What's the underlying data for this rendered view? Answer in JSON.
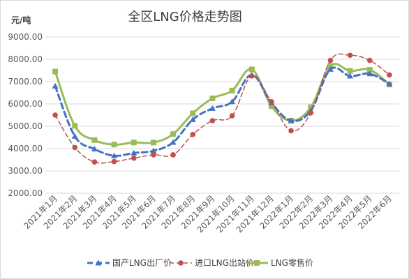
{
  "chart_data": {
    "type": "line",
    "title": "全区LNG价格走势图",
    "ylabel": "元/吨",
    "xlabel": "",
    "ylim": [
      2000,
      9000
    ],
    "yticks": [
      "2000.00",
      "3000.00",
      "4000.00",
      "5000.00",
      "6000.00",
      "7000.00",
      "8000.00",
      "9000.00"
    ],
    "grid": true,
    "legend_position": "bottom",
    "categories": [
      "2021年1月",
      "2021年2月",
      "2021年3月",
      "2021年4月",
      "2021年5月",
      "2021年6月",
      "2021年7月",
      "2021年8月",
      "2021年9月",
      "2021年10月",
      "2021年11月",
      "2021年12月",
      "2022年1月",
      "2022年2月",
      "2022年3月",
      "2022年4月",
      "2022年5月",
      "2022年6月"
    ],
    "series": [
      {
        "name": "国产LNG出厂价",
        "color": "#4472C4",
        "style": "dashed",
        "marker": "triangle",
        "values": [
          6800,
          4550,
          3980,
          3680,
          3800,
          3900,
          4280,
          5300,
          5800,
          6100,
          7300,
          6050,
          5250,
          5700,
          7550,
          7250,
          7350,
          6900
        ]
      },
      {
        "name": "进口LNG出站价",
        "color": "#C0504D",
        "style": "dashed-thin",
        "marker": "circle",
        "values": [
          5500,
          4050,
          3400,
          3420,
          3570,
          3720,
          3720,
          4630,
          5250,
          5470,
          7250,
          6100,
          4800,
          5600,
          7950,
          8180,
          7950,
          7300
        ]
      },
      {
        "name": "LNG零售价",
        "color": "#9BBB59",
        "style": "solid",
        "marker": "square",
        "values": [
          7450,
          5020,
          4380,
          4180,
          4270,
          4270,
          4650,
          5580,
          6250,
          6600,
          7550,
          5900,
          5250,
          5850,
          7700,
          7480,
          7530,
          6870
        ]
      }
    ]
  }
}
